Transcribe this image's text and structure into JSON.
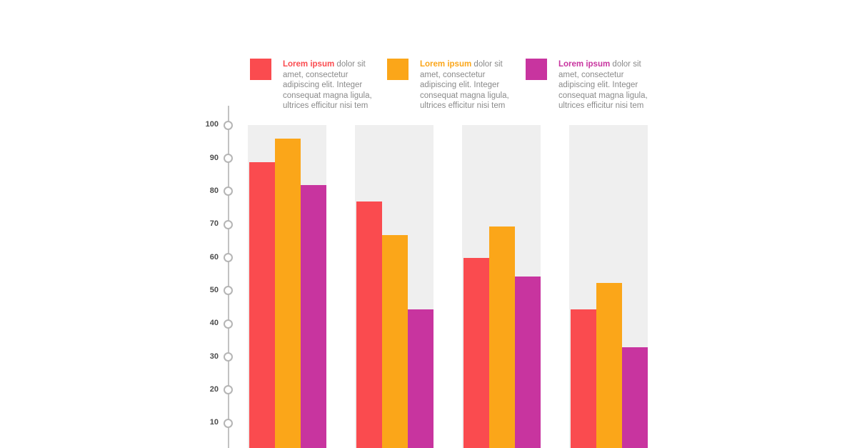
{
  "legend": [
    {
      "title": "Lorem ipsum",
      "text": "dolor sit amet, consectetur adipiscing elit. Integer consequat magna ligula, ultrices efficitur nisi tem",
      "color": "#FA4B4F"
    },
    {
      "title": "Lorem ipsum",
      "text": "dolor sit amet, consectetur adipiscing elit. Integer consequat magna ligula, ultrices efficitur nisi tem",
      "color": "#FBA619"
    },
    {
      "title": "Lorem ipsum",
      "text": "dolor sit amet, consectetur adipiscing elit. Integer consequat magna ligula, ultrices efficitur nisi tem",
      "color": "#C8349F"
    }
  ],
  "chart_data": {
    "type": "bar",
    "title": "",
    "xlabel": "",
    "ylabel": "",
    "ylim": [
      0,
      100
    ],
    "grid": false,
    "legend_position": "top",
    "y_ticks": [
      100,
      90,
      80,
      70,
      60,
      50,
      40,
      30,
      20,
      10
    ],
    "categories": [
      "",
      "",
      "",
      ""
    ],
    "series": [
      {
        "name": "Lorem ipsum",
        "color": "#FA4B4F",
        "values": [
          89,
          77,
          60,
          44.5
        ]
      },
      {
        "name": "Lorem ipsum",
        "color": "#FBA619",
        "values": [
          96,
          67,
          69.5,
          52.5
        ]
      },
      {
        "name": "Lorem ipsum",
        "color": "#C8349F",
        "values": [
          82,
          44.5,
          54.5,
          33
        ]
      }
    ],
    "track_color": "#EFEFEF",
    "axis_color": "#BDBDBD",
    "tick_label_color": "#4D4D4D",
    "legend_text_color": "#8A8A8A"
  }
}
